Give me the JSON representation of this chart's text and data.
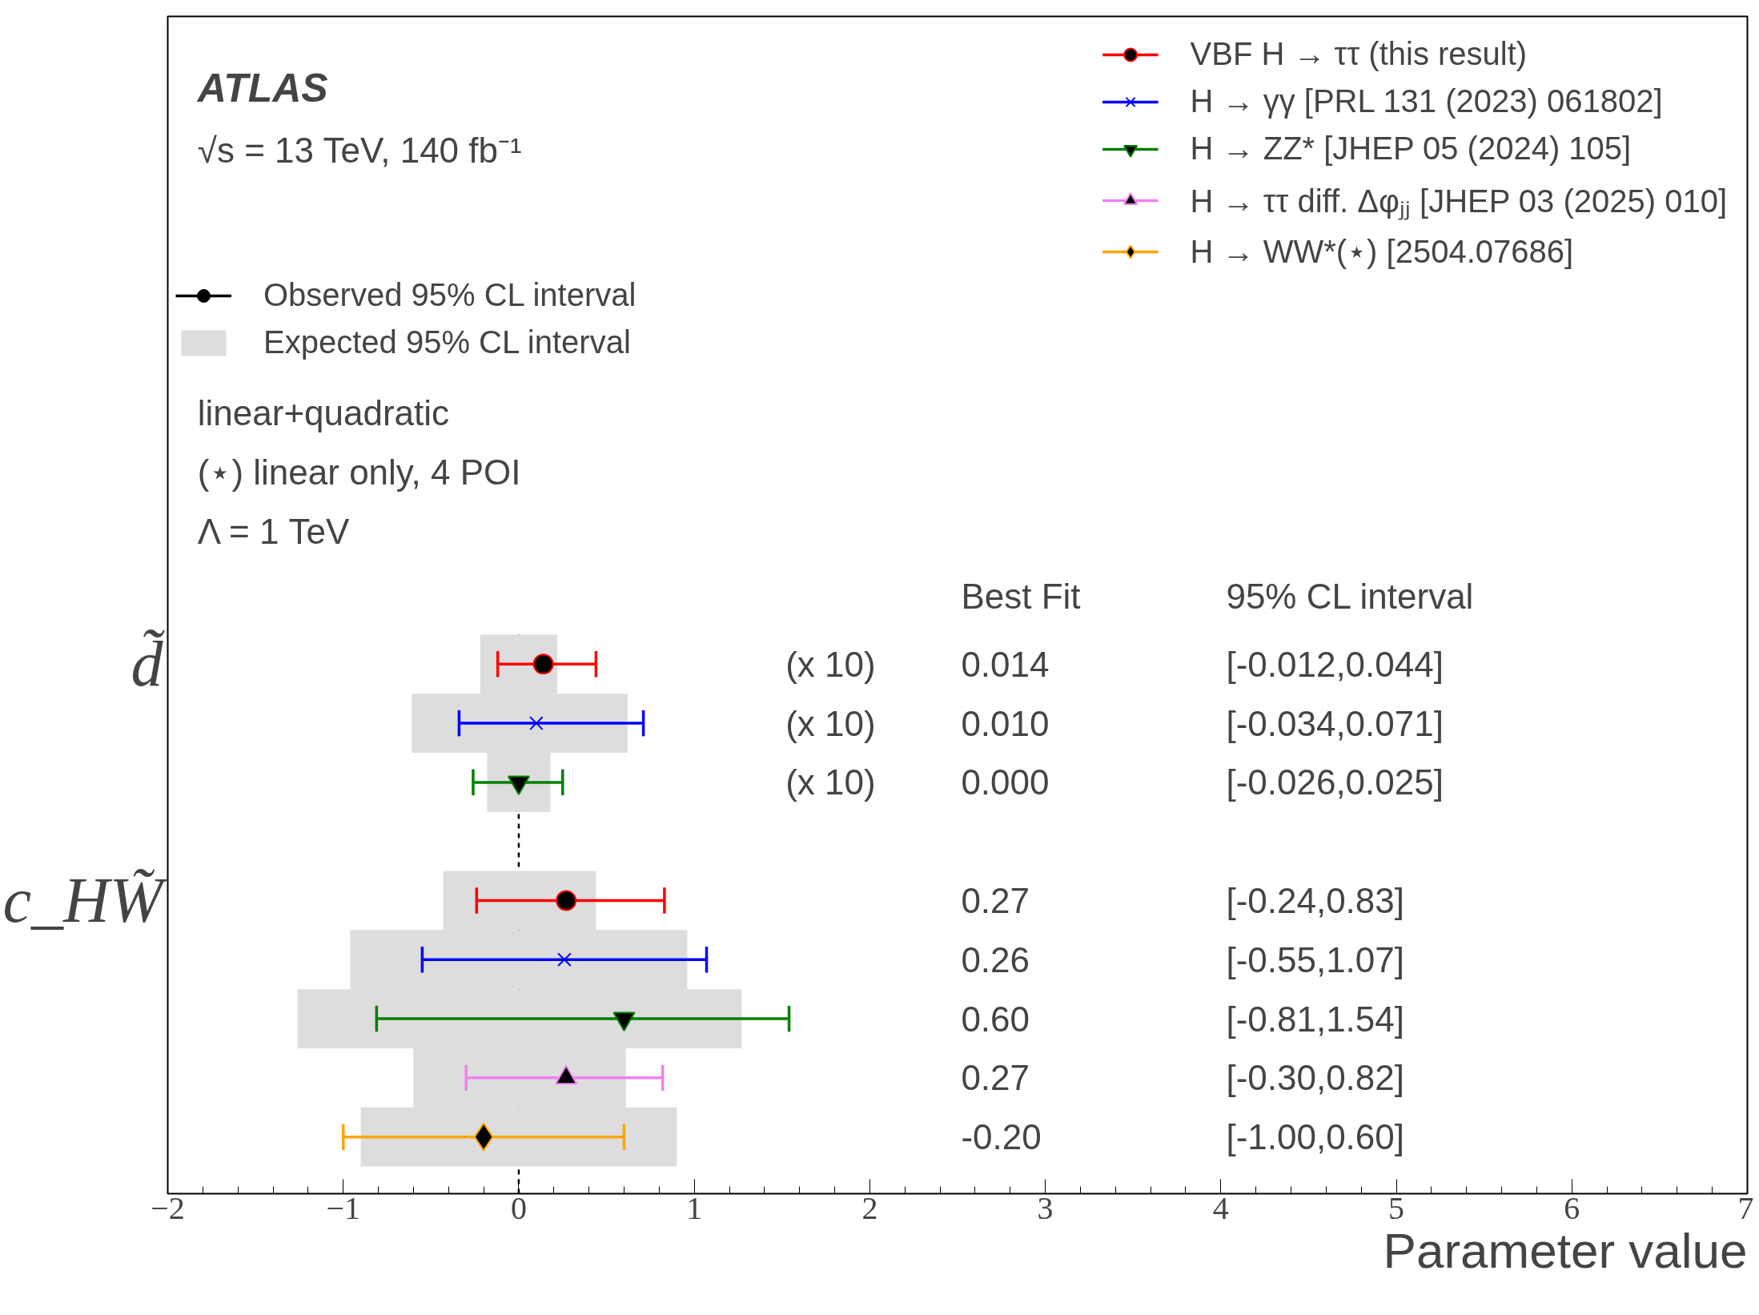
{
  "chart_data": {
    "type": "scatter",
    "orientation": "horizontal",
    "xlabel": "Parameter value",
    "xlim": [
      -2,
      7
    ],
    "xticks": [
      {
        "value": -2,
        "label": "−2"
      },
      {
        "value": -1,
        "label": "−1"
      },
      0,
      1,
      2,
      3,
      4,
      5,
      6,
      7
    ],
    "categories": [
      "d̃",
      null,
      null,
      null,
      "c_HW̃",
      null,
      null,
      null,
      null
    ],
    "legend": "top right",
    "grid": false,
    "ref_lines": [
      {
        "axis": "x",
        "value": 0,
        "line_style": "dashed",
        "color": "#000000"
      }
    ],
    "series": [
      {
        "name": "Expected 95% CL interval",
        "type": "bar",
        "color": "#dddddd",
        "base": [
          -0.22,
          -0.61,
          -0.18,
          null,
          -0.43,
          -0.96,
          -1.26,
          -0.6,
          -0.9
        ],
        "values": [
          0.44,
          1.23,
          0.36,
          null,
          0.87,
          1.92,
          2.53,
          1.21,
          1.8
        ]
      },
      {
        "name": "VBF H → ττ (this result)",
        "marker": "circle",
        "color": "#ff0000",
        "values": [
          0.14,
          null,
          null,
          null,
          0.27,
          null,
          null,
          null,
          null
        ],
        "errors": [
          [
            -0.12,
            0.44
          ],
          null,
          null,
          null,
          [
            -0.24,
            0.83
          ],
          null,
          null,
          null,
          null
        ]
      },
      {
        "name": "H → γγ [PRL 131 (2023) 061802]",
        "marker": "cross",
        "color": "#0000ff",
        "values": [
          null,
          0.1,
          null,
          null,
          null,
          0.26,
          null,
          null,
          null
        ],
        "errors": [
          null,
          [
            -0.34,
            0.71
          ],
          null,
          null,
          null,
          [
            -0.55,
            1.07
          ],
          null,
          null,
          null
        ]
      },
      {
        "name": "H → ZZ* [JHEP 05 (2024) 105]",
        "marker": "triangle_down",
        "color": "#008000",
        "values": [
          null,
          null,
          0.0,
          null,
          null,
          null,
          0.6,
          null,
          null
        ],
        "errors": [
          null,
          null,
          [
            -0.26,
            0.25
          ],
          null,
          null,
          null,
          [
            -0.81,
            1.54
          ],
          null,
          null
        ]
      },
      {
        "name": "H → ττ diff. Δφⱼⱼ [JHEP 03 (2025) 010]",
        "marker": "triangle",
        "color": "#ee82ee",
        "values": [
          null,
          null,
          null,
          null,
          null,
          null,
          null,
          0.27,
          null
        ],
        "errors": [
          null,
          null,
          null,
          null,
          null,
          null,
          null,
          [
            -0.3,
            0.82
          ],
          null
        ]
      },
      {
        "name": "H → WW*(⋆) [2504.07686]",
        "marker": "diamond",
        "color": "#ffa500",
        "values": [
          null,
          null,
          null,
          null,
          null,
          null,
          null,
          null,
          -0.2
        ],
        "errors": [
          null,
          null,
          null,
          null,
          null,
          null,
          null,
          null,
          [
            -1.0,
            0.6
          ]
        ]
      }
    ],
    "annotations": [
      "ATLAS",
      "√s = 13 TeV, 140 fb⁻¹",
      "Observed 95% CL interval",
      "linear+quadratic",
      "(⋆) linear only, 4 POI",
      "Λ = 1 TeV",
      "Best Fit",
      "95% CL interval",
      "(x 10)",
      "0.014",
      "[-0.012,0.044]",
      "(x 10)",
      "0.010",
      "[-0.034,0.071]",
      "(x 10)",
      "0.000",
      "[-0.026,0.025]",
      "0.27",
      "[-0.24,0.83]",
      "0.26",
      "[-0.55,1.07]",
      "0.60",
      "[-0.81,1.54]",
      "0.27",
      "[-0.30,0.82]",
      "-0.20",
      "[-1.00,0.60]"
    ]
  }
}
